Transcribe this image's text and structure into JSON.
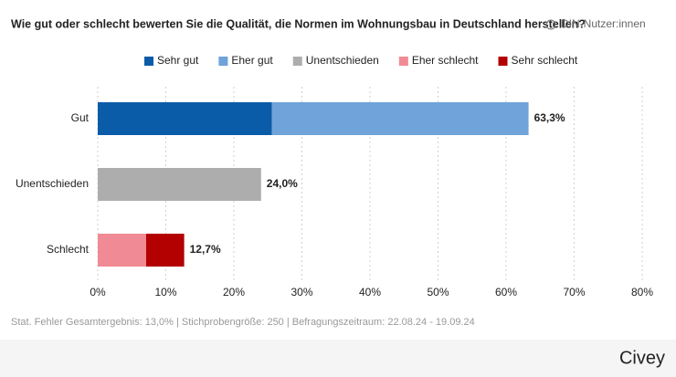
{
  "chart_data": {
    "type": "stacked-bar-horizontal",
    "title": "Wie gut oder schlecht bewerten Sie die Qualität, die Normen im Wohnungsbau in Deutschland herstellen?",
    "audience": "DIN-Nutzer:innen",
    "categories": [
      "Gut",
      "Unentschieden",
      "Schlecht"
    ],
    "series": [
      {
        "name": "Sehr gut",
        "color": "#0b5ca8",
        "values": [
          25.6,
          null,
          null
        ]
      },
      {
        "name": "Eher gut",
        "color": "#6fa3d9",
        "values": [
          37.7,
          null,
          null
        ]
      },
      {
        "name": "Unentschieden",
        "color": "#adadad",
        "values": [
          null,
          24.0,
          null
        ]
      },
      {
        "name": "Eher schlecht",
        "color": "#f08b95",
        "values": [
          null,
          null,
          7.1
        ]
      },
      {
        "name": "Sehr schlecht",
        "color": "#b30000",
        "values": [
          null,
          null,
          5.6
        ]
      }
    ],
    "totals": [
      63.3,
      24.0,
      12.7
    ],
    "total_labels": [
      "63,3%",
      "24,0%",
      "12,7%"
    ],
    "xlim": [
      0,
      80
    ],
    "xticks": [
      {
        "value": 0,
        "label": "0%"
      },
      {
        "value": 10,
        "label": "10%"
      },
      {
        "value": 20,
        "label": "20%"
      },
      {
        "value": 30,
        "label": "30%"
      },
      {
        "value": 40,
        "label": "40%"
      },
      {
        "value": 50,
        "label": "50%"
      },
      {
        "value": 60,
        "label": "60%"
      },
      {
        "value": 70,
        "label": "70%"
      },
      {
        "value": 80,
        "label": "80%"
      }
    ],
    "grid": true,
    "legend": "top",
    "footnote": "Stat. Fehler Gesamtergebnis: 13,0% | Stichprobengröße: 250 | Befragungszeitraum: 22.08.24 - 19.09.24",
    "brand": "Civey"
  }
}
